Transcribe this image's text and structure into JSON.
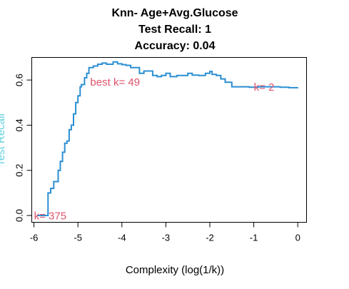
{
  "chart_data": {
    "type": "line",
    "title": [
      "Knn- Age+Avg.Glucose",
      "Test Recall:  1",
      "Accuracy:  0.04"
    ],
    "xlabel": "Complexity (log(1/k))",
    "ylabel": "Test Recall",
    "xlim": [
      -6.05,
      0.2
    ],
    "ylim": [
      -0.03,
      0.7
    ],
    "x_ticks": [
      -6,
      -5,
      -4,
      -3,
      -2,
      -1,
      0
    ],
    "y_ticks": [
      0.0,
      0.2,
      0.4,
      0.6
    ],
    "x_tick_labels": [
      "-6",
      "-5",
      "-4",
      "-3",
      "-2",
      "-1",
      "0"
    ],
    "y_tick_labels": [
      "0.0",
      "0.2",
      "0.4",
      "0.6"
    ],
    "grid": false,
    "series": [
      {
        "color": "#2B8FD3",
        "x": [
          -5.93,
          -5.8,
          -5.72,
          -5.68,
          -5.62,
          -5.55,
          -5.45,
          -5.4,
          -5.35,
          -5.3,
          -5.25,
          -5.2,
          -5.15,
          -5.1,
          -5.05,
          -5.0,
          -4.95,
          -4.92,
          -4.85,
          -4.8,
          -4.75,
          -4.65,
          -4.55,
          -4.45,
          -4.35,
          -4.2,
          -4.1,
          -4.0,
          -3.9,
          -3.8,
          -3.6,
          -3.5,
          -3.3,
          -3.2,
          -3.1,
          -3.0,
          -2.9,
          -2.75,
          -2.6,
          -2.5,
          -2.4,
          -2.25,
          -2.1,
          -2.0,
          -1.95,
          -1.85,
          -1.75,
          -1.65,
          -1.5,
          -1.3,
          -1.1,
          -0.9,
          -0.69,
          -0.4,
          -0.2,
          0.0
        ],
        "y": [
          0.0,
          0.0,
          0.0,
          0.1,
          0.12,
          0.15,
          0.2,
          0.24,
          0.28,
          0.32,
          0.33,
          0.38,
          0.4,
          0.45,
          0.5,
          0.53,
          0.57,
          0.58,
          0.61,
          0.63,
          0.655,
          0.662,
          0.67,
          0.675,
          0.67,
          0.68,
          0.672,
          0.668,
          0.665,
          0.655,
          0.63,
          0.64,
          0.62,
          0.615,
          0.62,
          0.63,
          0.615,
          0.62,
          0.62,
          0.63,
          0.622,
          0.62,
          0.63,
          0.638,
          0.625,
          0.62,
          0.605,
          0.59,
          0.57,
          0.57,
          0.568,
          0.57,
          0.57,
          0.568,
          0.566,
          0.567
        ]
      }
    ],
    "annotations": [
      {
        "text": "best k= 49",
        "x": -4.72,
        "y": 0.575,
        "anchor": "start",
        "color": "#DF536B"
      },
      {
        "text": "k= 2",
        "x": -1.0,
        "y": 0.553,
        "anchor": "start",
        "color": "#DF536B"
      },
      {
        "text": "k= 375",
        "x": -6.0,
        "y": -0.017,
        "anchor": "start",
        "color": "#DF536B"
      }
    ],
    "colors": {
      "line": "#2B8FD3",
      "annotation": "#DF536B",
      "ylabel": "#61D0DE",
      "axes": "#000000"
    }
  }
}
